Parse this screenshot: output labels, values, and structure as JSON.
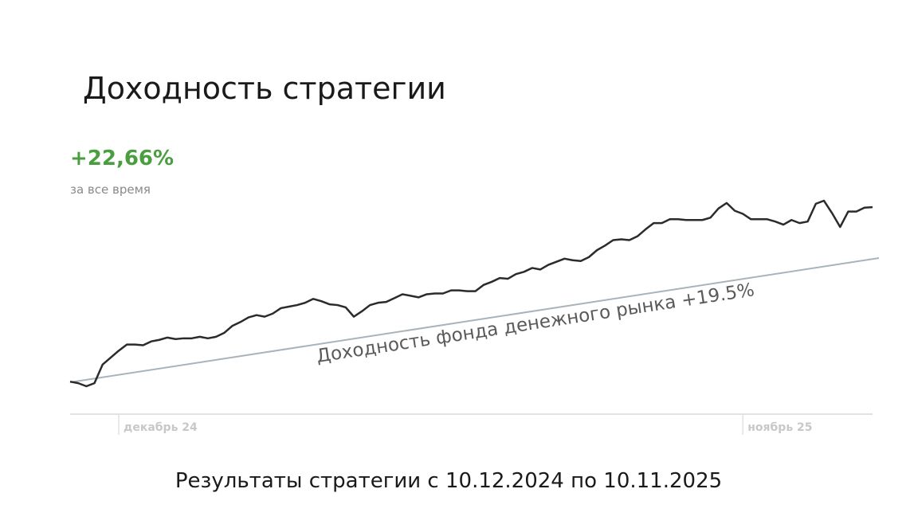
{
  "chart_data": {
    "type": "line",
    "title": "Доходность стратегии",
    "summary": "+22,66%",
    "summary_caption": "за все время",
    "annotation": "Доходность фонда денежного рынка +19.5%",
    "footer": "Результаты стратегии с 10.12.2024 по 10.11.2025",
    "color": "#2b2b2b",
    "summary_color": "#4a9e3f",
    "xlim": [
      0,
      99
    ],
    "xticks": [
      {
        "value": 6,
        "label": "декабрь 24"
      },
      {
        "value": 83,
        "label": "ноябрь 25"
      }
    ],
    "ylim": [
      -4,
      27
    ],
    "values": [
      0.1,
      -0.1,
      -0.5,
      -0.1,
      2.3,
      3.2,
      4.1,
      4.9,
      4.9,
      4.8,
      5.3,
      5.5,
      5.8,
      5.6,
      5.7,
      5.7,
      5.9,
      5.7,
      5.9,
      6.4,
      7.3,
      7.8,
      8.4,
      8.7,
      8.5,
      8.9,
      9.6,
      9.8,
      10.0,
      10.3,
      10.8,
      10.5,
      10.1,
      10.0,
      9.7,
      8.5,
      9.2,
      10.0,
      10.3,
      10.4,
      10.9,
      11.4,
      11.2,
      11.0,
      11.4,
      11.5,
      11.5,
      11.9,
      11.9,
      11.8,
      11.8,
      12.6,
      13.0,
      13.5,
      13.4,
      14.0,
      14.3,
      14.8,
      14.6,
      15.2,
      15.6,
      16.0,
      15.8,
      15.7,
      16.2,
      17.1,
      17.7,
      18.4,
      18.5,
      18.4,
      18.9,
      19.8,
      20.6,
      20.6,
      21.1,
      21.1,
      21.0,
      21.0,
      21.0,
      21.3,
      22.5,
      23.2,
      22.2,
      21.8,
      21.1,
      21.1,
      21.1,
      20.8,
      20.4,
      21.0,
      20.6,
      20.8,
      23.1,
      23.5,
      21.9,
      20.1,
      22.1,
      22.1,
      22.6,
      22.66
    ]
  }
}
